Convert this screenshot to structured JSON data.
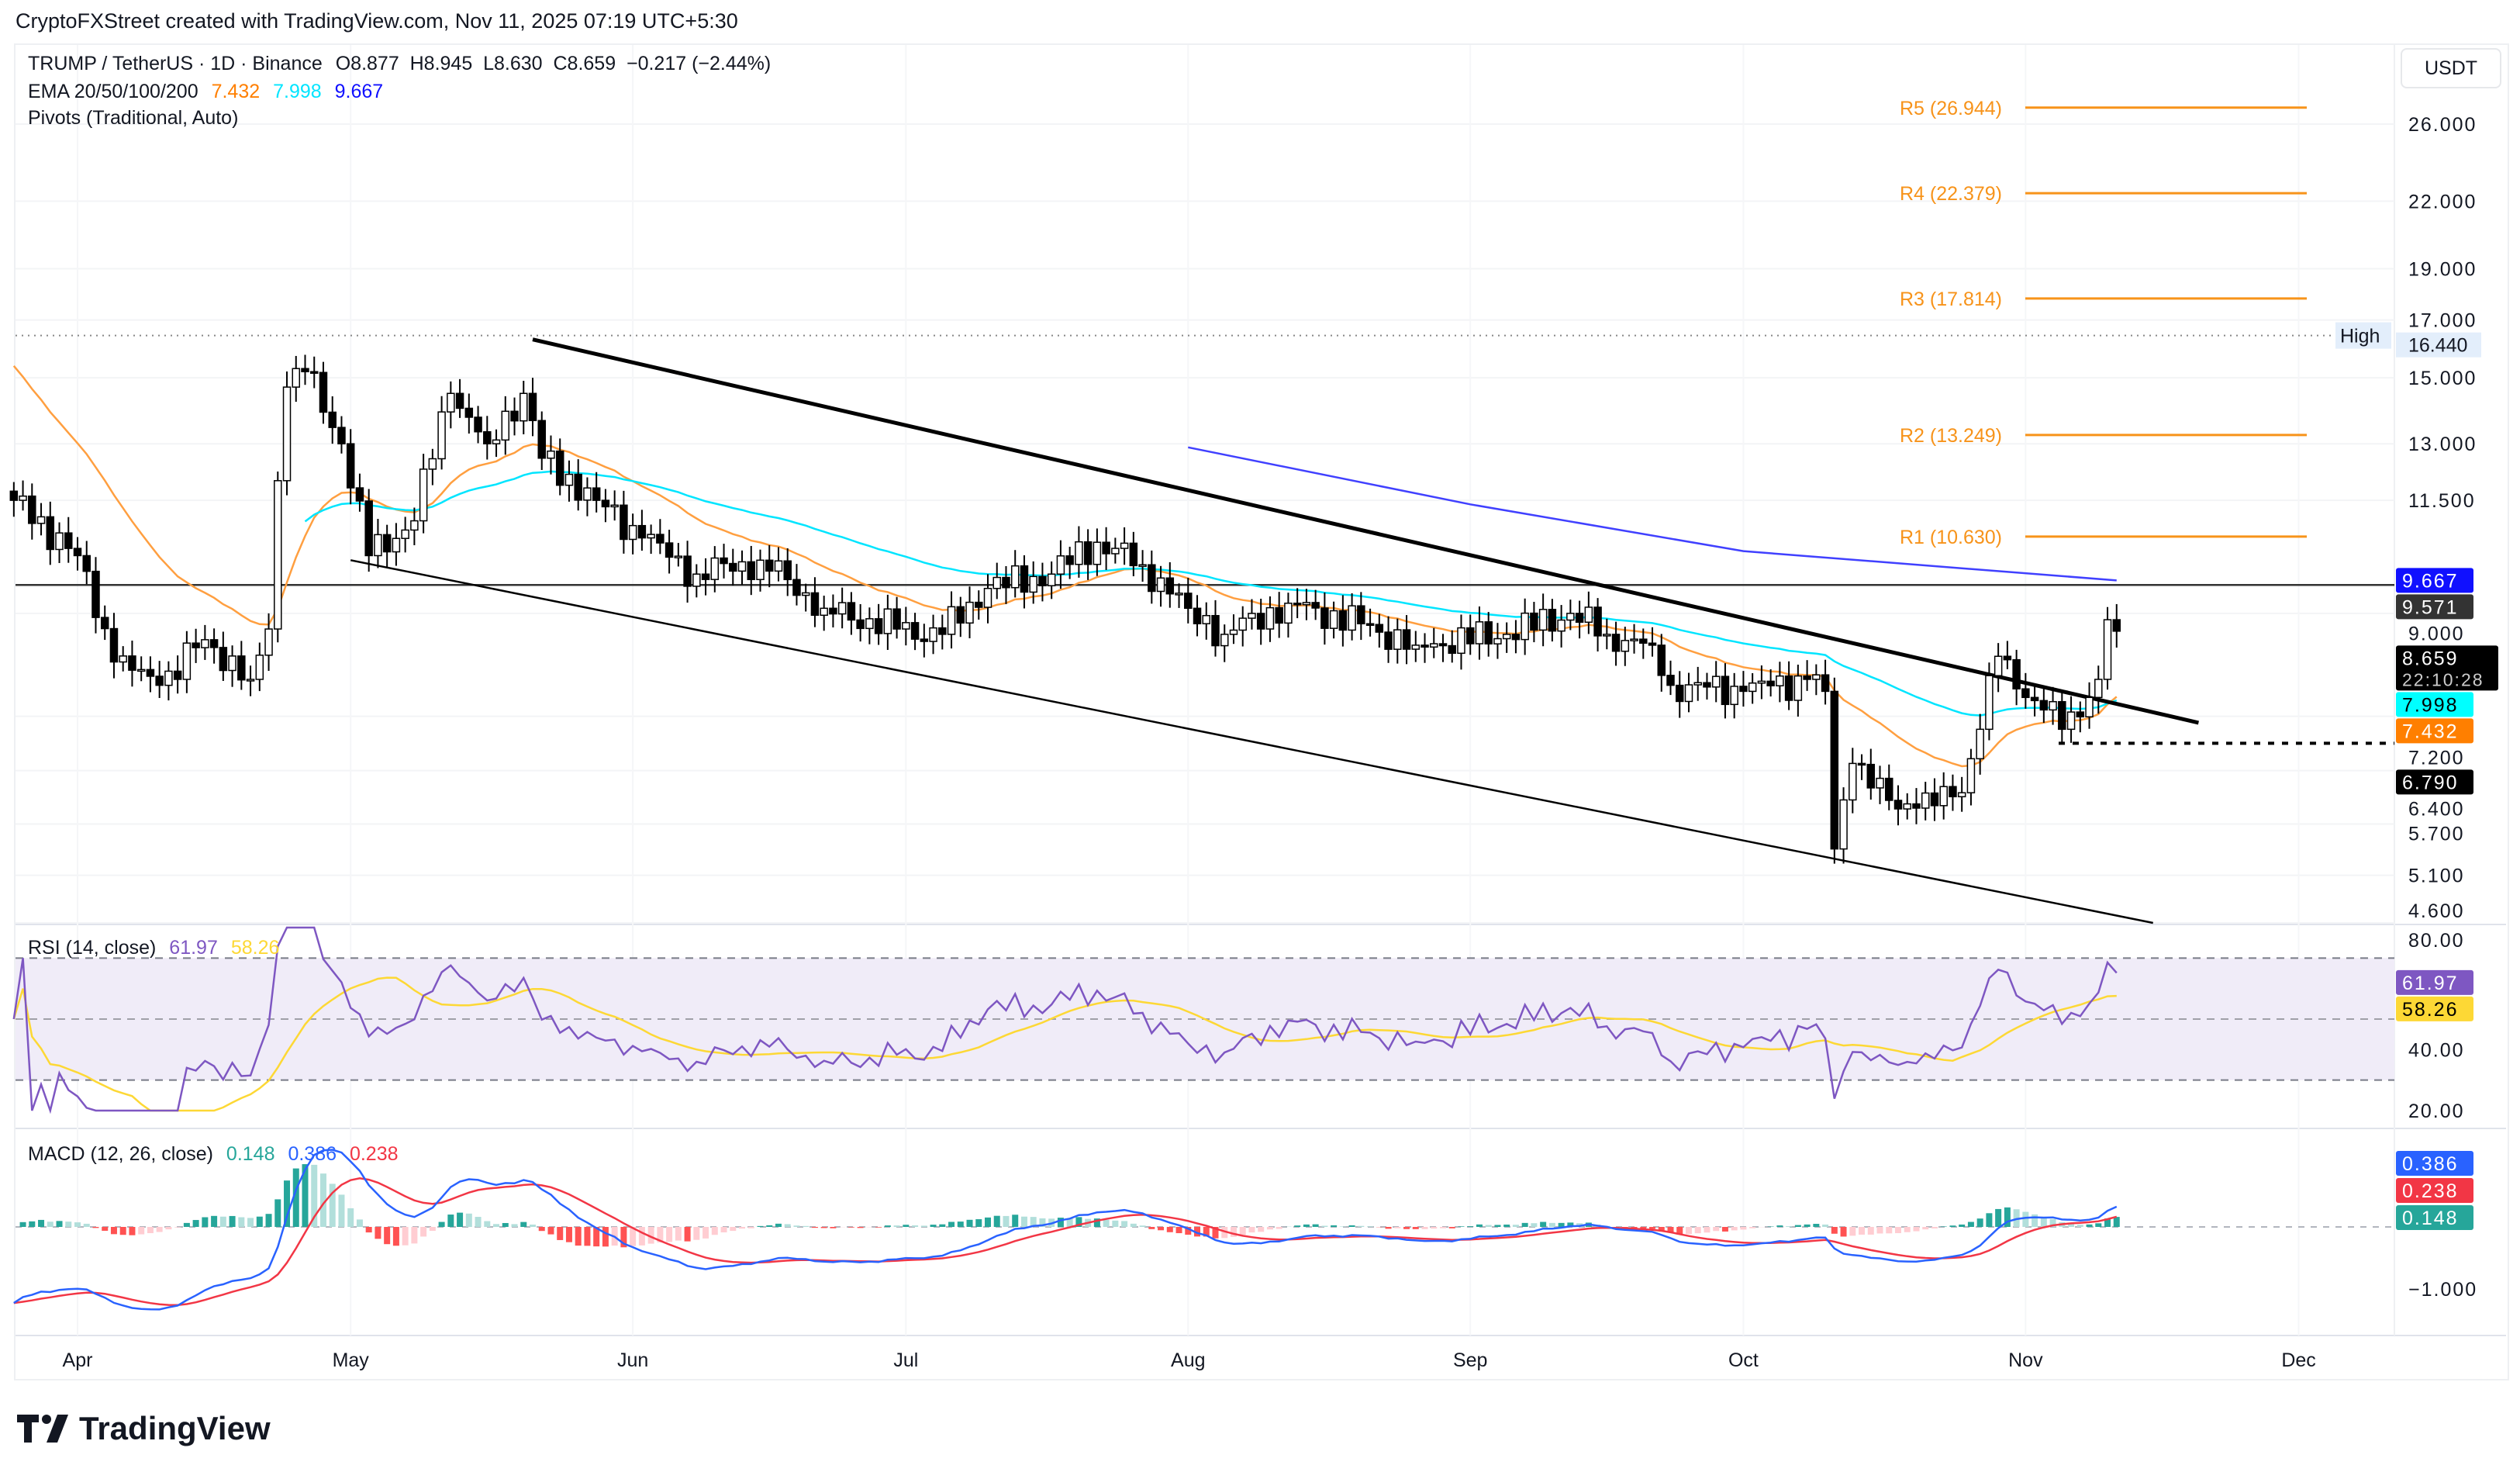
{
  "credit": "CryptoFXStreet created with TradingView.com, Nov 11, 2025 07:19 UTC+5:30",
  "legend": {
    "symbol": "TRUMP / TetherUS · 1D · Binance",
    "ohlc": "O8.877  H8.945  L8.630  C8.659  −0.217 (−2.44%)",
    "ema_label": "EMA 20/50/100/200",
    "ema_values": [
      {
        "v": "7.432",
        "color": "#ff7f00"
      },
      {
        "v": "7.998",
        "color": "#00e5ff"
      },
      {
        "v": "9.667",
        "color": "#1010ff"
      }
    ],
    "pivots_label": "Pivots (Traditional, Auto)",
    "rsi_label": "RSI (14, close)",
    "rsi_value": "61.97",
    "rsi_ma_value": "58.26",
    "macd_label": "MACD (12, 26, close)",
    "macd_hist": "0.148",
    "macd_line": "0.386",
    "macd_signal": "0.238"
  },
  "currency": "USDT",
  "logo": "TradingView",
  "chart_data": {
    "type": "candlestick",
    "price_axis": {
      "scale": "log",
      "range": [
        4.6,
        26
      ],
      "ticks": [
        "26.000",
        "22.000",
        "19.000",
        "17.000",
        "15.000",
        "13.000",
        "11.500",
        "9.000",
        "7.200",
        "6.400",
        "5.700",
        "5.100",
        "4.600"
      ]
    },
    "time_axis": {
      "labels": [
        {
          "t": "Apr",
          "d": "2025-04-01"
        },
        {
          "t": "May",
          "d": "2025-05-01"
        },
        {
          "t": "Jun",
          "d": "2025-06-01"
        },
        {
          "t": "Jul",
          "d": "2025-07-01"
        },
        {
          "t": "Aug",
          "d": "2025-08-01"
        },
        {
          "t": "Sep",
          "d": "2025-09-01"
        },
        {
          "t": "Oct",
          "d": "2025-10-01"
        },
        {
          "t": "Nov",
          "d": "2025-11-01"
        },
        {
          "t": "Dec",
          "d": "2025-12-01"
        }
      ]
    },
    "approx_closes": [
      [
        "2025-03-25",
        11.5
      ],
      [
        "2025-04-01",
        10.2
      ],
      [
        "2025-04-05",
        8.1
      ],
      [
        "2025-04-10",
        7.7
      ],
      [
        "2025-04-15",
        8.5
      ],
      [
        "2025-04-20",
        7.8
      ],
      [
        "2025-04-22",
        8.7
      ],
      [
        "2025-04-23",
        12.0
      ],
      [
        "2025-04-24",
        14.7
      ],
      [
        "2025-04-26",
        15.2
      ],
      [
        "2025-04-30",
        13.0
      ],
      [
        "2025-05-03",
        10.2
      ],
      [
        "2025-05-08",
        11.0
      ],
      [
        "2025-05-12",
        14.5
      ],
      [
        "2025-05-16",
        13.0
      ],
      [
        "2025-05-20",
        14.5
      ],
      [
        "2025-05-22",
        12.6
      ],
      [
        "2025-05-28",
        11.5
      ],
      [
        "2025-06-02",
        10.6
      ],
      [
        "2025-06-08",
        9.8
      ],
      [
        "2025-06-15",
        10.1
      ],
      [
        "2025-06-22",
        9.1
      ],
      [
        "2025-06-30",
        8.7
      ],
      [
        "2025-07-05",
        8.6
      ],
      [
        "2025-07-10",
        9.5
      ],
      [
        "2025-07-17",
        9.8
      ],
      [
        "2025-07-22",
        10.5
      ],
      [
        "2025-07-27",
        10.0
      ],
      [
        "2025-08-01",
        9.1
      ],
      [
        "2025-08-05",
        8.6
      ],
      [
        "2025-08-12",
        9.2
      ],
      [
        "2025-08-20",
        8.8
      ],
      [
        "2025-08-26",
        8.4
      ],
      [
        "2025-09-05",
        8.6
      ],
      [
        "2025-09-12",
        9.0
      ],
      [
        "2025-09-16",
        8.6
      ],
      [
        "2025-09-21",
        8.4
      ],
      [
        "2025-09-23",
        7.7
      ],
      [
        "2025-10-01",
        7.6
      ],
      [
        "2025-10-08",
        7.8
      ],
      [
        "2025-10-10",
        7.6
      ],
      [
        "2025-10-11",
        5.4
      ],
      [
        "2025-10-13",
        6.5
      ],
      [
        "2025-10-17",
        6.0
      ],
      [
        "2025-10-20",
        5.9
      ],
      [
        "2025-10-25",
        6.1
      ],
      [
        "2025-10-27",
        7.0
      ],
      [
        "2025-10-29",
        8.2
      ],
      [
        "2025-11-01",
        7.5
      ],
      [
        "2025-11-03",
        7.3
      ],
      [
        "2025-11-05",
        7.0
      ],
      [
        "2025-11-08",
        7.5
      ],
      [
        "2025-11-09",
        7.8
      ],
      [
        "2025-11-10",
        8.877
      ],
      [
        "2025-11-11",
        8.659
      ]
    ],
    "ema200_points": [
      [
        "2025-08-01",
        12.9
      ],
      [
        "2025-09-01",
        11.4
      ],
      [
        "2025-10-01",
        10.3
      ],
      [
        "2025-11-11",
        9.667
      ]
    ],
    "ema_colors": {
      "ema20": "#ff9f40",
      "ema50": "#00e5ff",
      "ema200": "#4040ff"
    },
    "pivots": [
      {
        "label": "R5 (26.944)",
        "v": 26.944
      },
      {
        "label": "R4 (22.379)",
        "v": 22.379
      },
      {
        "label": "R3 (17.814)",
        "v": 17.814
      },
      {
        "label": "R2 (13.249)",
        "v": 13.249
      },
      {
        "label": "R1 (10.630)",
        "v": 10.63
      }
    ],
    "high": {
      "label": "High",
      "value": "16.440",
      "v": 16.44
    },
    "horizontal_level": {
      "value": "9.571",
      "v": 9.571
    },
    "support_level": {
      "value": "6.790",
      "v": 6.79
    },
    "trendlines": [
      {
        "from": [
          "2025-05-21",
          16.3
        ],
        "to": [
          "2025-11-20",
          7.1
        ]
      },
      {
        "from": [
          "2025-05-01",
          10.1
        ],
        "to": [
          "2025-11-15",
          4.6
        ]
      }
    ],
    "badges": [
      {
        "text": "9.667",
        "bg": "#1010ff",
        "fg": "#fff",
        "v": 9.667
      },
      {
        "text": "9.571",
        "bg": "#333",
        "fg": "#fff",
        "v": 9.571
      },
      {
        "text": "8.659",
        "sub": "22:10:28",
        "bg": "#000",
        "fg": "#fff",
        "v": 8.659
      },
      {
        "text": "7.998",
        "bg": "#00ffff",
        "fg": "#000",
        "v": 7.998
      },
      {
        "text": "7.432",
        "bg": "#ff7f00",
        "fg": "#fff",
        "v": 7.432
      },
      {
        "text": "6.790",
        "bg": "#000",
        "fg": "#fff",
        "v": 6.79
      }
    ],
    "rsi": {
      "range": [
        20,
        80
      ],
      "ticks": [
        "80.00",
        "40.00",
        "20.00"
      ],
      "bands": [
        70,
        50,
        30
      ],
      "badges": [
        {
          "text": "61.97",
          "bg": "#7e57c2",
          "fg": "#fff",
          "v": 61.97
        },
        {
          "text": "58.26",
          "bg": "#fdd835",
          "fg": "#000",
          "v": 58.26
        }
      ]
    },
    "macd": {
      "ticks": [
        "−1.000"
      ],
      "badges": [
        {
          "text": "0.386",
          "bg": "#2962ff",
          "fg": "#fff",
          "v": 0.386
        },
        {
          "text": "0.238",
          "bg": "#f23645",
          "fg": "#fff",
          "v": 0.238
        },
        {
          "text": "0.148",
          "bg": "#26a69a",
          "fg": "#fff",
          "v": 0.148
        }
      ]
    }
  }
}
